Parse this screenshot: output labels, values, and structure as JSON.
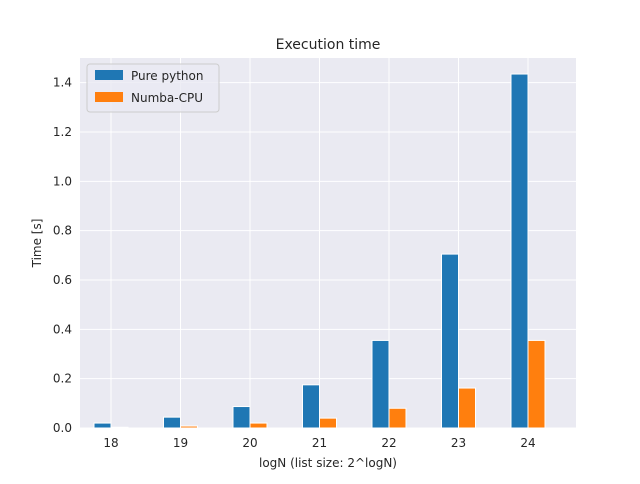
{
  "chart_data": {
    "type": "bar",
    "title": "Execution time",
    "xlabel": "logN (list size: 2^logN)",
    "ylabel": "Time [s]",
    "categories": [
      "18",
      "19",
      "20",
      "21",
      "22",
      "23",
      "24"
    ],
    "ylim": [
      0,
      1.5
    ],
    "yticks": [
      "0.0",
      "0.2",
      "0.4",
      "0.6",
      "0.8",
      "1.0",
      "1.2",
      "1.4"
    ],
    "grid": true,
    "legend_position": "top-left",
    "series": [
      {
        "name": "Pure python",
        "color": "#1f77b4",
        "values": [
          0.02,
          0.044,
          0.087,
          0.175,
          0.355,
          0.705,
          1.435
        ]
      },
      {
        "name": "Numba-CPU",
        "color": "#ff7f0e",
        "values": [
          0.003,
          0.008,
          0.02,
          0.04,
          0.08,
          0.162,
          0.355
        ]
      }
    ]
  }
}
